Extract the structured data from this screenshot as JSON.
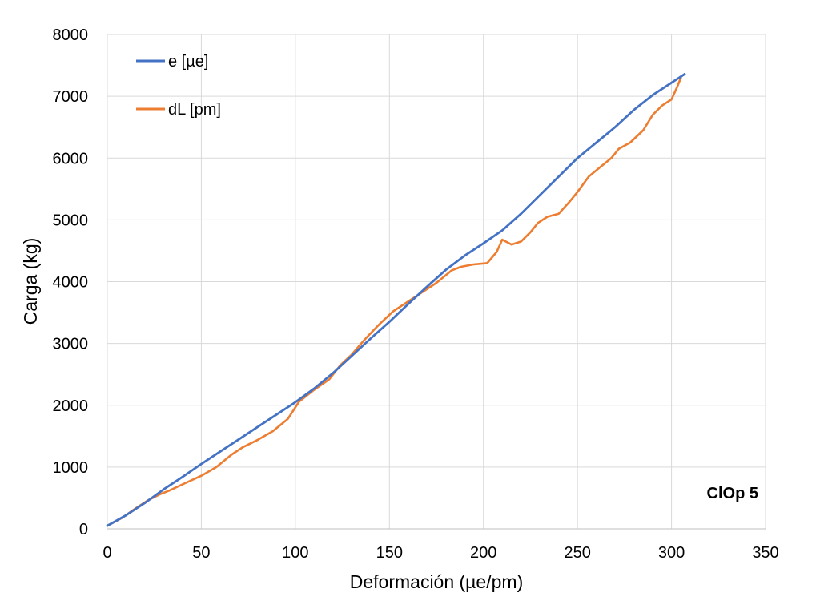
{
  "chart_data": {
    "type": "line",
    "xlabel": "Deformación (µe/pm)",
    "ylabel": "Carga (kg)",
    "xlim": [
      0,
      350
    ],
    "ylim": [
      0,
      8000
    ],
    "xticks": [
      0,
      50,
      100,
      150,
      200,
      250,
      300,
      350
    ],
    "yticks": [
      0,
      1000,
      2000,
      3000,
      4000,
      5000,
      6000,
      7000,
      8000
    ],
    "grid": true,
    "legend_position": "top-left",
    "annotation": "ClOp 5",
    "series": [
      {
        "name": "e [µe]",
        "color": "#4472C4",
        "points": [
          [
            0,
            50
          ],
          [
            10,
            220
          ],
          [
            20,
            420
          ],
          [
            30,
            640
          ],
          [
            40,
            840
          ],
          [
            50,
            1050
          ],
          [
            60,
            1250
          ],
          [
            70,
            1450
          ],
          [
            80,
            1650
          ],
          [
            90,
            1850
          ],
          [
            100,
            2050
          ],
          [
            110,
            2270
          ],
          [
            120,
            2520
          ],
          [
            130,
            2800
          ],
          [
            140,
            3080
          ],
          [
            150,
            3350
          ],
          [
            160,
            3640
          ],
          [
            170,
            3920
          ],
          [
            180,
            4190
          ],
          [
            190,
            4420
          ],
          [
            200,
            4620
          ],
          [
            210,
            4830
          ],
          [
            220,
            5100
          ],
          [
            230,
            5400
          ],
          [
            240,
            5700
          ],
          [
            250,
            6000
          ],
          [
            260,
            6250
          ],
          [
            270,
            6500
          ],
          [
            280,
            6780
          ],
          [
            290,
            7020
          ],
          [
            300,
            7220
          ],
          [
            307,
            7360
          ]
        ]
      },
      {
        "name": "dL [pm]",
        "color": "#ED7D31",
        "points": [
          [
            0,
            50
          ],
          [
            8,
            180
          ],
          [
            15,
            330
          ],
          [
            22,
            470
          ],
          [
            28,
            560
          ],
          [
            33,
            620
          ],
          [
            40,
            720
          ],
          [
            50,
            860
          ],
          [
            58,
            1000
          ],
          [
            66,
            1200
          ],
          [
            72,
            1320
          ],
          [
            80,
            1440
          ],
          [
            88,
            1580
          ],
          [
            96,
            1780
          ],
          [
            102,
            2060
          ],
          [
            110,
            2250
          ],
          [
            118,
            2420
          ],
          [
            124,
            2650
          ],
          [
            130,
            2820
          ],
          [
            135,
            3000
          ],
          [
            138,
            3100
          ],
          [
            145,
            3320
          ],
          [
            152,
            3520
          ],
          [
            160,
            3680
          ],
          [
            168,
            3840
          ],
          [
            175,
            3980
          ],
          [
            183,
            4180
          ],
          [
            188,
            4240
          ],
          [
            195,
            4280
          ],
          [
            202,
            4300
          ],
          [
            207,
            4480
          ],
          [
            210,
            4680
          ],
          [
            215,
            4600
          ],
          [
            220,
            4650
          ],
          [
            225,
            4800
          ],
          [
            229,
            4950
          ],
          [
            234,
            5050
          ],
          [
            240,
            5100
          ],
          [
            246,
            5300
          ],
          [
            250,
            5450
          ],
          [
            256,
            5700
          ],
          [
            262,
            5850
          ],
          [
            268,
            6000
          ],
          [
            272,
            6150
          ],
          [
            278,
            6250
          ],
          [
            285,
            6450
          ],
          [
            290,
            6700
          ],
          [
            295,
            6850
          ],
          [
            300,
            6950
          ],
          [
            303,
            7150
          ],
          [
            305,
            7300
          ]
        ]
      }
    ]
  }
}
